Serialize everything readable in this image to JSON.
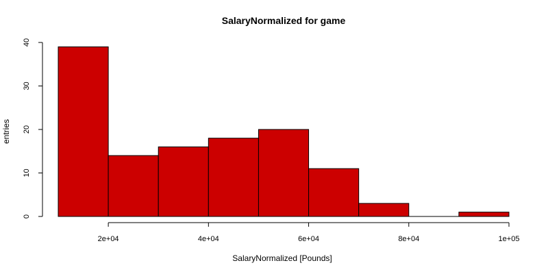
{
  "chart_data": {
    "type": "bar",
    "title": "SalaryNormalized for game",
    "xlabel": "SalaryNormalized [Pounds]",
    "ylabel": "entries",
    "bins": [
      {
        "from": 10000,
        "to": 20000,
        "count": 39
      },
      {
        "from": 20000,
        "to": 30000,
        "count": 14
      },
      {
        "from": 30000,
        "to": 40000,
        "count": 16
      },
      {
        "from": 40000,
        "to": 50000,
        "count": 18
      },
      {
        "from": 50000,
        "to": 60000,
        "count": 20
      },
      {
        "from": 60000,
        "to": 70000,
        "count": 11
      },
      {
        "from": 70000,
        "to": 80000,
        "count": 3
      },
      {
        "from": 80000,
        "to": 90000,
        "count": 0
      },
      {
        "from": 90000,
        "to": 100000,
        "count": 1
      }
    ],
    "xlim": [
      10000,
      100000
    ],
    "ylim": [
      0,
      40
    ],
    "x_ticks": [
      {
        "value": 20000,
        "label": "2e+04"
      },
      {
        "value": 40000,
        "label": "4e+04"
      },
      {
        "value": 60000,
        "label": "6e+04"
      },
      {
        "value": 80000,
        "label": "8e+04"
      },
      {
        "value": 100000,
        "label": "1e+05"
      }
    ],
    "y_ticks": [
      {
        "value": 0,
        "label": "0"
      },
      {
        "value": 10,
        "label": "10"
      },
      {
        "value": 20,
        "label": "20"
      },
      {
        "value": 30,
        "label": "30"
      },
      {
        "value": 40,
        "label": "40"
      }
    ],
    "bar_color": "#cc0000",
    "grid": false,
    "legend": "none"
  }
}
